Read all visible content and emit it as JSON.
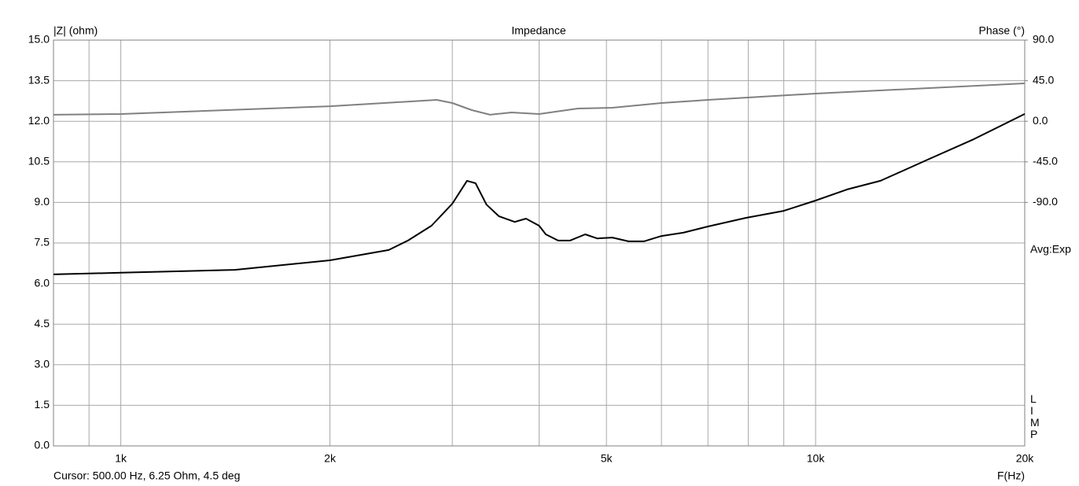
{
  "chart_data": {
    "type": "line",
    "title": "Impedance",
    "y_label": "|Z| (ohm)",
    "y2_label": "Phase (°)",
    "x_label": "F(Hz)",
    "annotation": "Avg:Exp",
    "side_label": "LIMP",
    "cursor": "Cursor: 500.00 Hz, 6.25 Ohm, 4.5 deg",
    "log_x": true,
    "grid": true,
    "xlim": [
      800,
      20000
    ],
    "xticks": [
      {
        "value": 1000,
        "label": "1k"
      },
      {
        "value": 2000,
        "label": "2k"
      },
      {
        "value": 5000,
        "label": "5k"
      },
      {
        "value": 10000,
        "label": "10k"
      },
      {
        "value": 20000,
        "label": "20k"
      }
    ],
    "xgrid": [
      900,
      3000,
      4000,
      6000,
      7000,
      8000,
      9000
    ],
    "ylim": [
      0,
      15
    ],
    "yticks": [
      {
        "value": 0,
        "label": "0.0"
      },
      {
        "value": 1.5,
        "label": "1.5"
      },
      {
        "value": 3,
        "label": "3.0"
      },
      {
        "value": 4.5,
        "label": "4.5"
      },
      {
        "value": 6,
        "label": "6.0"
      },
      {
        "value": 7.5,
        "label": "7.5"
      },
      {
        "value": 9,
        "label": "9.0"
      },
      {
        "value": 10.5,
        "label": "10.5"
      },
      {
        "value": 12,
        "label": "12.0"
      },
      {
        "value": 13.5,
        "label": "13.5"
      },
      {
        "value": 15,
        "label": "15.0"
      }
    ],
    "y2lim": [
      -360,
      90
    ],
    "y2ticks": [
      {
        "value": -90,
        "label": "-90.0"
      },
      {
        "value": -45,
        "label": "-45.0"
      },
      {
        "value": 0,
        "label": "0.0"
      },
      {
        "value": 45,
        "label": "45.0"
      },
      {
        "value": 90,
        "label": "90.0"
      }
    ],
    "series": [
      {
        "color": "#000000",
        "x": [
          800,
          1000,
          1460,
          2000,
          2430,
          2590,
          2800,
          3000,
          3150,
          3240,
          3360,
          3500,
          3690,
          3830,
          4000,
          4090,
          4260,
          4430,
          4660,
          4850,
          5100,
          5380,
          5660,
          6000,
          6450,
          7000,
          7940,
          9000,
          10000,
          11100,
          12400,
          14500,
          16900,
          20000
        ],
        "values": [
          6.34,
          6.4,
          6.51,
          6.86,
          7.24,
          7.59,
          8.14,
          8.95,
          9.8,
          9.71,
          8.92,
          8.49,
          8.28,
          8.4,
          8.14,
          7.82,
          7.59,
          7.59,
          7.82,
          7.67,
          7.7,
          7.56,
          7.56,
          7.76,
          7.88,
          8.11,
          8.43,
          8.69,
          9.07,
          9.48,
          9.8,
          10.58,
          11.34,
          12.27
        ]
      },
      {
        "color": "#808080",
        "axis": "y2",
        "x": [
          800,
          1000,
          2000,
          2850,
          3000,
          3200,
          3400,
          3650,
          4000,
          4550,
          5100,
          6000,
          7000,
          10000,
          20000
        ],
        "values": [
          7.2,
          8,
          16.7,
          23.7,
          20.2,
          12.4,
          7.2,
          9.8,
          8,
          14.1,
          15,
          20.2,
          23.7,
          30.7,
          42
        ]
      }
    ]
  }
}
